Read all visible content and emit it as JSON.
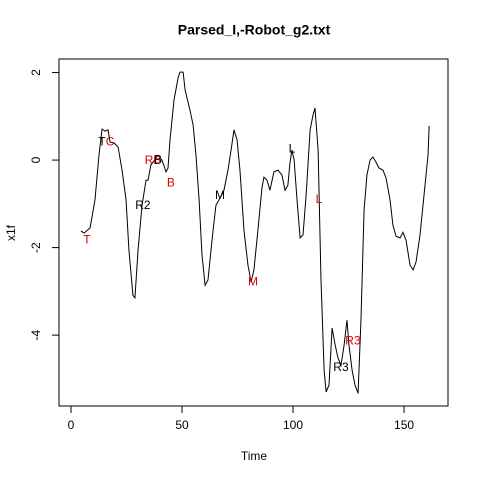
{
  "chart_data": {
    "type": "line",
    "title": "Parsed_I,-Robot_g2.txt",
    "x_label": "Time",
    "y_label": "x1f",
    "x": [
      4.5,
      5.9,
      8.6,
      10.8,
      12.6,
      14.0,
      15.3,
      16.7,
      17.6,
      19.4,
      21.2,
      23.0,
      24.8,
      26.1,
      27.9,
      28.8,
      30.2,
      32.0,
      33.8,
      34.7,
      36.0,
      36.9,
      39.2,
      41.0,
      42.8,
      43.7,
      44.6,
      46.4,
      48.2,
      49.1,
      50.5,
      51.4,
      53.6,
      55.0,
      56.3,
      57.7,
      59.0,
      60.4,
      61.7,
      62.6,
      64.0,
      65.3,
      67.1,
      68.9,
      70.7,
      72.1,
      73.4,
      74.8,
      76.1,
      77.9,
      79.7,
      81.1,
      82.4,
      84.2,
      86.0,
      86.9,
      88.3,
      89.6,
      91.4,
      93.2,
      95.0,
      96.4,
      97.7,
      98.6,
      99.5,
      100.5,
      101.8,
      103.2,
      104.5,
      105.9,
      107.7,
      109.0,
      109.9,
      111.3,
      112.6,
      114.0,
      114.9,
      116.2,
      117.6,
      119.0,
      120.3,
      121.6,
      123.0,
      124.3,
      125.2,
      126.6,
      127.9,
      129.3,
      130.6,
      132.0,
      133.3,
      134.7,
      136.0,
      137.4,
      138.7,
      140.5,
      141.9,
      143.7,
      145.0,
      146.4,
      148.2,
      149.5,
      150.9,
      152.7,
      154.1,
      155.4,
      157.2,
      159.0,
      160.8,
      161.3
    ],
    "series": [
      {
        "name": "x1f",
        "color": "#000000",
        "values": [
          -1.62,
          -1.67,
          -1.55,
          -0.91,
          0.11,
          0.71,
          0.66,
          0.69,
          0.41,
          0.39,
          0.3,
          -0.23,
          -0.91,
          -2.06,
          -3.09,
          -3.15,
          -2.06,
          -1.03,
          -0.46,
          -0.46,
          -0.11,
          -0.05,
          0.11,
          0.0,
          -0.27,
          -0.18,
          0.46,
          1.37,
          1.87,
          2.01,
          2.01,
          1.6,
          1.14,
          0.8,
          0.11,
          -0.91,
          -2.17,
          -2.86,
          -2.74,
          -2.29,
          -1.6,
          -1.03,
          -0.87,
          -0.69,
          -0.23,
          0.23,
          0.69,
          0.46,
          -0.23,
          -1.6,
          -2.4,
          -2.79,
          -2.51,
          -1.6,
          -0.64,
          -0.39,
          -0.46,
          -0.69,
          -0.27,
          -0.23,
          -0.34,
          -0.69,
          -0.57,
          -0.07,
          0.23,
          0.0,
          -0.91,
          -1.78,
          -1.71,
          -0.8,
          0.69,
          1.03,
          1.19,
          0.23,
          -2.74,
          -4.8,
          -5.3,
          -5.14,
          -3.84,
          -4.23,
          -4.53,
          -4.69,
          -4.23,
          -3.66,
          -4.23,
          -4.8,
          -5.14,
          -5.33,
          -3.66,
          -1.14,
          -0.34,
          0.0,
          0.07,
          -0.05,
          -0.18,
          -0.23,
          -0.41,
          -0.91,
          -1.49,
          -1.74,
          -1.78,
          -1.65,
          -1.83,
          -2.4,
          -2.51,
          -2.33,
          -1.71,
          -0.8,
          0.11,
          0.78
        ]
      }
    ],
    "annotations": [
      {
        "label": "T",
        "x": 14.0,
        "y": 0.41,
        "color": "#000000"
      },
      {
        "label": "C",
        "x": 17.6,
        "y": 0.41,
        "color": "#dd0000"
      },
      {
        "label": "T",
        "x": 7.2,
        "y": -1.83,
        "color": "#dd0000"
      },
      {
        "label": "R2",
        "x": 32.4,
        "y": -1.05,
        "color": "#000000"
      },
      {
        "label": "RB",
        "x": 36.9,
        "y": -0.02,
        "color": "#dd0000"
      },
      {
        "label": "B",
        "x": 39.2,
        "y": 0.0,
        "color": "#000000"
      },
      {
        "label": "B",
        "x": 45.0,
        "y": -0.53,
        "color": "#dd0000"
      },
      {
        "label": "M",
        "x": 67.1,
        "y": -0.82,
        "color": "#000000"
      },
      {
        "label": "M",
        "x": 82.0,
        "y": -2.79,
        "color": "#dd0000"
      },
      {
        "label": "L",
        "x": 99.5,
        "y": 0.25,
        "color": "#000000"
      },
      {
        "label": "L",
        "x": 111.7,
        "y": -0.91,
        "color": "#dd0000"
      },
      {
        "label": "R3",
        "x": 127.0,
        "y": -4.14,
        "color": "#dd0000"
      },
      {
        "label": "R3",
        "x": 121.6,
        "y": -4.75,
        "color": "#000000"
      }
    ],
    "xlim": [
      -5.4,
      169.8
    ],
    "ylim": [
      -5.62,
      2.31
    ],
    "xticks": [
      0,
      50,
      100,
      150
    ],
    "yticks": [
      -4,
      -2,
      0,
      2
    ]
  }
}
